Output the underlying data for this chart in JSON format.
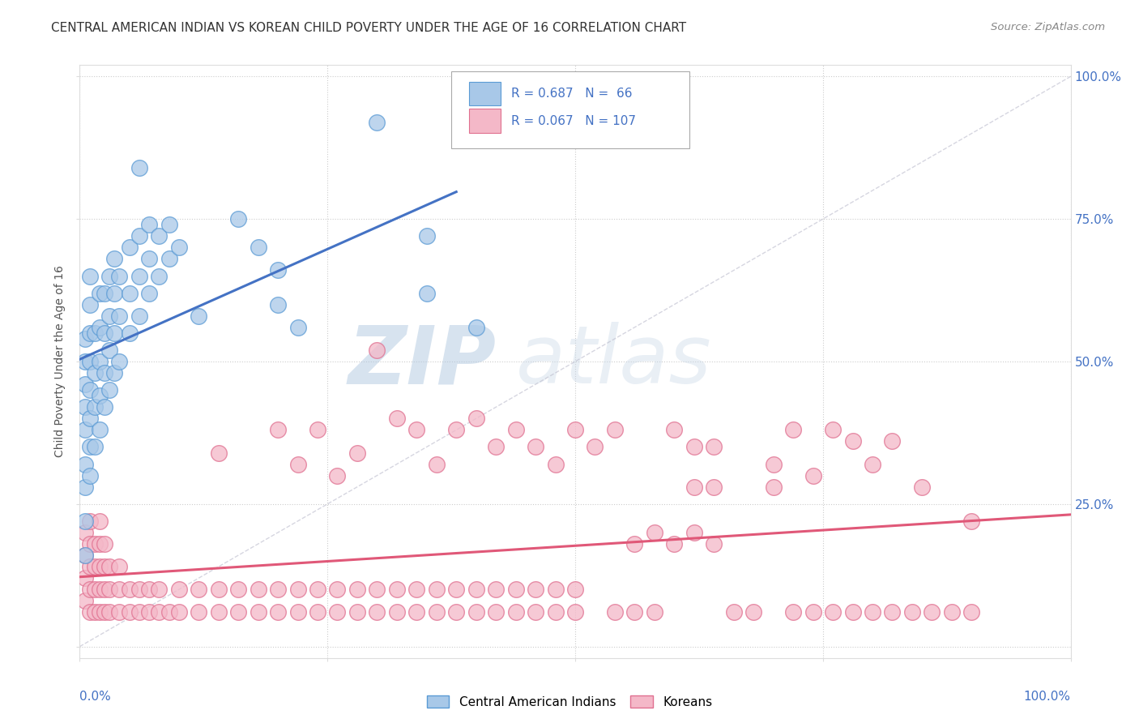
{
  "title": "CENTRAL AMERICAN INDIAN VS KOREAN CHILD POVERTY UNDER THE AGE OF 16 CORRELATION CHART",
  "source": "Source: ZipAtlas.com",
  "ylabel": "Child Poverty Under the Age of 16",
  "ytick_vals": [
    0.0,
    0.25,
    0.5,
    0.75,
    1.0
  ],
  "ytick_labels": [
    "",
    "25.0%",
    "50.0%",
    "75.0%",
    "100.0%"
  ],
  "right_ytick_labels": [
    "",
    "25.0%",
    "50.0%",
    "75.0%",
    "100.0%"
  ],
  "xlim": [
    0.0,
    1.0
  ],
  "ylim": [
    -0.02,
    1.02
  ],
  "color_blue_fill": "#A8C8E8",
  "color_blue_edge": "#5B9BD5",
  "color_pink_fill": "#F4B8C8",
  "color_pink_edge": "#E07090",
  "color_blue_line": "#4472C4",
  "color_pink_line": "#E05878",
  "color_legend_text": "#4472C4",
  "watermark_zip": "ZIP",
  "watermark_atlas": "atlas",
  "background_color": "#FFFFFF",
  "grid_color": "#CCCCCC",
  "dashed_line_color": "#BBBBCC",
  "blue_dots": [
    [
      0.005,
      0.28
    ],
    [
      0.005,
      0.32
    ],
    [
      0.005,
      0.38
    ],
    [
      0.005,
      0.42
    ],
    [
      0.005,
      0.46
    ],
    [
      0.005,
      0.5
    ],
    [
      0.005,
      0.54
    ],
    [
      0.005,
      0.22
    ],
    [
      0.005,
      0.16
    ],
    [
      0.01,
      0.3
    ],
    [
      0.01,
      0.35
    ],
    [
      0.01,
      0.4
    ],
    [
      0.01,
      0.45
    ],
    [
      0.01,
      0.5
    ],
    [
      0.01,
      0.55
    ],
    [
      0.01,
      0.6
    ],
    [
      0.01,
      0.65
    ],
    [
      0.015,
      0.35
    ],
    [
      0.015,
      0.42
    ],
    [
      0.015,
      0.48
    ],
    [
      0.015,
      0.55
    ],
    [
      0.02,
      0.38
    ],
    [
      0.02,
      0.44
    ],
    [
      0.02,
      0.5
    ],
    [
      0.02,
      0.56
    ],
    [
      0.02,
      0.62
    ],
    [
      0.025,
      0.42
    ],
    [
      0.025,
      0.48
    ],
    [
      0.025,
      0.55
    ],
    [
      0.025,
      0.62
    ],
    [
      0.03,
      0.45
    ],
    [
      0.03,
      0.52
    ],
    [
      0.03,
      0.58
    ],
    [
      0.03,
      0.65
    ],
    [
      0.035,
      0.48
    ],
    [
      0.035,
      0.55
    ],
    [
      0.035,
      0.62
    ],
    [
      0.035,
      0.68
    ],
    [
      0.04,
      0.5
    ],
    [
      0.04,
      0.58
    ],
    [
      0.04,
      0.65
    ],
    [
      0.05,
      0.55
    ],
    [
      0.05,
      0.62
    ],
    [
      0.05,
      0.7
    ],
    [
      0.06,
      0.58
    ],
    [
      0.06,
      0.65
    ],
    [
      0.06,
      0.72
    ],
    [
      0.07,
      0.62
    ],
    [
      0.07,
      0.68
    ],
    [
      0.07,
      0.74
    ],
    [
      0.08,
      0.65
    ],
    [
      0.08,
      0.72
    ],
    [
      0.09,
      0.68
    ],
    [
      0.09,
      0.74
    ],
    [
      0.1,
      0.7
    ],
    [
      0.06,
      0.84
    ],
    [
      0.12,
      0.58
    ],
    [
      0.16,
      0.75
    ],
    [
      0.18,
      0.7
    ],
    [
      0.2,
      0.66
    ],
    [
      0.2,
      0.6
    ],
    [
      0.22,
      0.56
    ],
    [
      0.3,
      0.92
    ],
    [
      0.35,
      0.72
    ],
    [
      0.35,
      0.62
    ],
    [
      0.4,
      0.56
    ]
  ],
  "pink_dots": [
    [
      0.005,
      0.08
    ],
    [
      0.005,
      0.12
    ],
    [
      0.005,
      0.16
    ],
    [
      0.005,
      0.2
    ],
    [
      0.01,
      0.06
    ],
    [
      0.01,
      0.1
    ],
    [
      0.01,
      0.14
    ],
    [
      0.01,
      0.18
    ],
    [
      0.01,
      0.22
    ],
    [
      0.015,
      0.06
    ],
    [
      0.015,
      0.1
    ],
    [
      0.015,
      0.14
    ],
    [
      0.015,
      0.18
    ],
    [
      0.02,
      0.06
    ],
    [
      0.02,
      0.1
    ],
    [
      0.02,
      0.14
    ],
    [
      0.02,
      0.18
    ],
    [
      0.02,
      0.22
    ],
    [
      0.025,
      0.06
    ],
    [
      0.025,
      0.1
    ],
    [
      0.025,
      0.14
    ],
    [
      0.025,
      0.18
    ],
    [
      0.03,
      0.06
    ],
    [
      0.03,
      0.1
    ],
    [
      0.03,
      0.14
    ],
    [
      0.04,
      0.06
    ],
    [
      0.04,
      0.1
    ],
    [
      0.04,
      0.14
    ],
    [
      0.05,
      0.06
    ],
    [
      0.05,
      0.1
    ],
    [
      0.06,
      0.06
    ],
    [
      0.06,
      0.1
    ],
    [
      0.07,
      0.06
    ],
    [
      0.07,
      0.1
    ],
    [
      0.08,
      0.06
    ],
    [
      0.08,
      0.1
    ],
    [
      0.09,
      0.06
    ],
    [
      0.1,
      0.06
    ],
    [
      0.1,
      0.1
    ],
    [
      0.12,
      0.06
    ],
    [
      0.12,
      0.1
    ],
    [
      0.14,
      0.06
    ],
    [
      0.14,
      0.1
    ],
    [
      0.16,
      0.06
    ],
    [
      0.16,
      0.1
    ],
    [
      0.18,
      0.06
    ],
    [
      0.18,
      0.1
    ],
    [
      0.2,
      0.06
    ],
    [
      0.2,
      0.1
    ],
    [
      0.22,
      0.06
    ],
    [
      0.22,
      0.1
    ],
    [
      0.24,
      0.06
    ],
    [
      0.24,
      0.1
    ],
    [
      0.26,
      0.06
    ],
    [
      0.26,
      0.1
    ],
    [
      0.28,
      0.06
    ],
    [
      0.28,
      0.1
    ],
    [
      0.3,
      0.06
    ],
    [
      0.3,
      0.1
    ],
    [
      0.32,
      0.06
    ],
    [
      0.32,
      0.1
    ],
    [
      0.34,
      0.06
    ],
    [
      0.34,
      0.1
    ],
    [
      0.36,
      0.06
    ],
    [
      0.36,
      0.1
    ],
    [
      0.38,
      0.06
    ],
    [
      0.38,
      0.1
    ],
    [
      0.4,
      0.06
    ],
    [
      0.4,
      0.1
    ],
    [
      0.42,
      0.06
    ],
    [
      0.42,
      0.1
    ],
    [
      0.44,
      0.06
    ],
    [
      0.44,
      0.1
    ],
    [
      0.46,
      0.06
    ],
    [
      0.46,
      0.1
    ],
    [
      0.48,
      0.06
    ],
    [
      0.48,
      0.1
    ],
    [
      0.5,
      0.06
    ],
    [
      0.5,
      0.1
    ],
    [
      0.14,
      0.34
    ],
    [
      0.2,
      0.38
    ],
    [
      0.22,
      0.32
    ],
    [
      0.24,
      0.38
    ],
    [
      0.26,
      0.3
    ],
    [
      0.28,
      0.34
    ],
    [
      0.3,
      0.52
    ],
    [
      0.32,
      0.4
    ],
    [
      0.34,
      0.38
    ],
    [
      0.36,
      0.32
    ],
    [
      0.38,
      0.38
    ],
    [
      0.4,
      0.4
    ],
    [
      0.42,
      0.35
    ],
    [
      0.44,
      0.38
    ],
    [
      0.46,
      0.35
    ],
    [
      0.48,
      0.32
    ],
    [
      0.5,
      0.38
    ],
    [
      0.52,
      0.35
    ],
    [
      0.54,
      0.38
    ],
    [
      0.56,
      0.18
    ],
    [
      0.58,
      0.2
    ],
    [
      0.6,
      0.18
    ],
    [
      0.62,
      0.2
    ],
    [
      0.64,
      0.18
    ],
    [
      0.6,
      0.38
    ],
    [
      0.62,
      0.35
    ],
    [
      0.64,
      0.35
    ],
    [
      0.62,
      0.28
    ],
    [
      0.64,
      0.28
    ],
    [
      0.7,
      0.32
    ],
    [
      0.72,
      0.38
    ],
    [
      0.74,
      0.3
    ],
    [
      0.76,
      0.38
    ],
    [
      0.78,
      0.36
    ],
    [
      0.8,
      0.32
    ],
    [
      0.82,
      0.36
    ],
    [
      0.8,
      0.06
    ],
    [
      0.82,
      0.06
    ],
    [
      0.84,
      0.06
    ],
    [
      0.86,
      0.06
    ],
    [
      0.88,
      0.06
    ],
    [
      0.9,
      0.06
    ],
    [
      0.72,
      0.06
    ],
    [
      0.74,
      0.06
    ],
    [
      0.76,
      0.06
    ],
    [
      0.78,
      0.06
    ],
    [
      0.66,
      0.06
    ],
    [
      0.68,
      0.06
    ],
    [
      0.54,
      0.06
    ],
    [
      0.56,
      0.06
    ],
    [
      0.58,
      0.06
    ],
    [
      0.7,
      0.28
    ],
    [
      0.85,
      0.28
    ],
    [
      0.9,
      0.22
    ]
  ]
}
